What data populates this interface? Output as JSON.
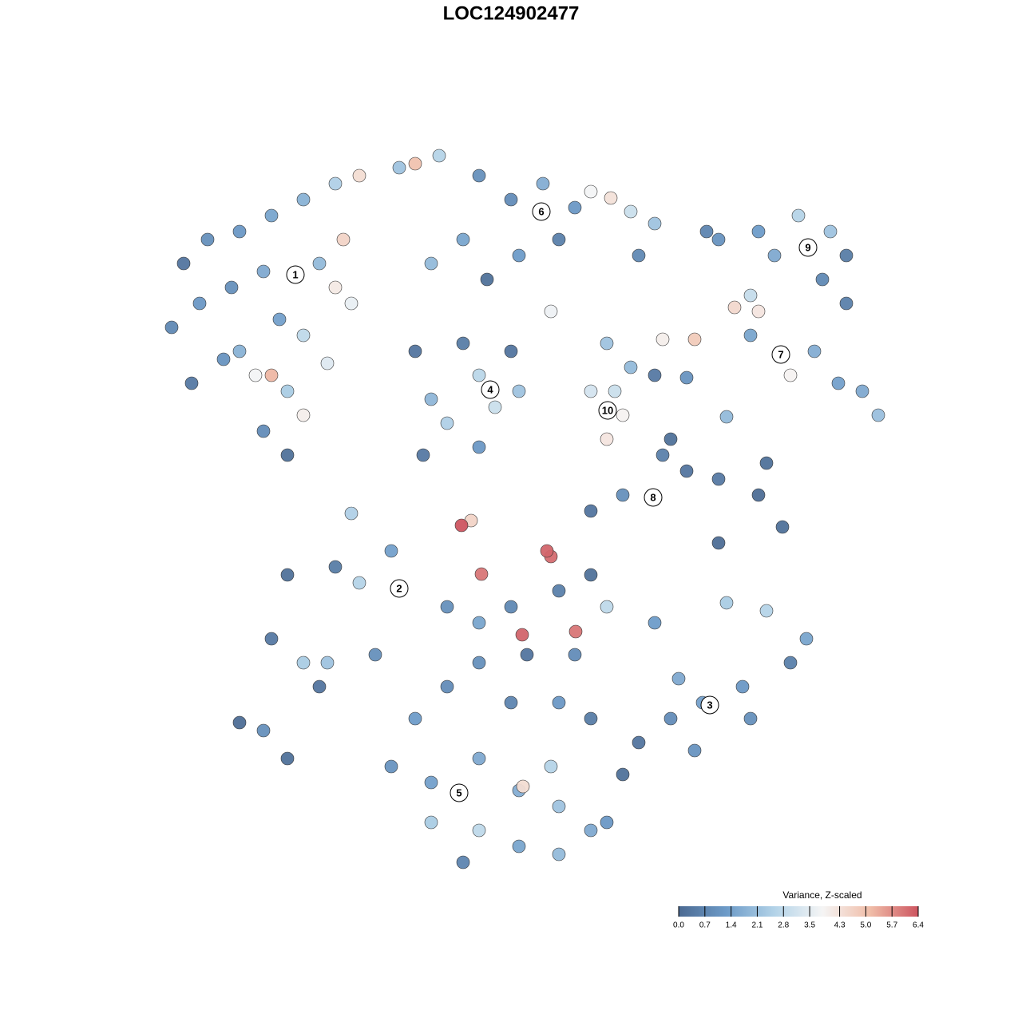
{
  "chart_data": {
    "type": "scatter",
    "title": "LOC124902477",
    "x": [
      30,
      60,
      100,
      140,
      180,
      220,
      250,
      300,
      320,
      350,
      15,
      50,
      90,
      130,
      200,
      230,
      220,
      240,
      180,
      150,
      100,
      120,
      140,
      160,
      180,
      130,
      160,
      40,
      80,
      210,
      400,
      440,
      480,
      520,
      540,
      565,
      590,
      620,
      500,
      450,
      380,
      340,
      410,
      490,
      600,
      700,
      750,
      800,
      840,
      860,
      830,
      770,
      740,
      685,
      860,
      630,
      670,
      720,
      750,
      790,
      820,
      850,
      900,
      880,
      740,
      660,
      710,
      620,
      320,
      340,
      360,
      400,
      420,
      450,
      380,
      440,
      400,
      330,
      560,
      590,
      540,
      580,
      560,
      570,
      640,
      660,
      700,
      750,
      780,
      700,
      580,
      540,
      630,
      760,
      378,
      390,
      485,
      490,
      403,
      454,
      521,
      240,
      160,
      220,
      250,
      290,
      140,
      180,
      210,
      200,
      100,
      160,
      130,
      270,
      620,
      710,
      760,
      810,
      790,
      730,
      680,
      640,
      600,
      580,
      740,
      650,
      670,
      360,
      400,
      440,
      500,
      540,
      560,
      460,
      400,
      360,
      320,
      440,
      500,
      540,
      290,
      340,
      400,
      450,
      455,
      500,
      340,
      400,
      450,
      500,
      540,
      380,
      490,
      520,
      560
    ],
    "y": [
      760,
      790,
      800,
      820,
      840,
      860,
      870,
      880,
      885,
      895,
      680,
      710,
      730,
      750,
      760,
      790,
      730,
      710,
      670,
      690,
      650,
      620,
      620,
      600,
      570,
      550,
      520,
      610,
      640,
      635,
      870,
      840,
      860,
      830,
      850,
      842,
      825,
      810,
      790,
      770,
      790,
      760,
      740,
      700,
      770,
      790,
      800,
      820,
      800,
      770,
      740,
      770,
      720,
      800,
      710,
      665,
      665,
      705,
      700,
      620,
      650,
      610,
      570,
      600,
      670,
      617,
      568,
      620,
      650,
      590,
      560,
      620,
      580,
      600,
      660,
      650,
      530,
      520,
      660,
      630,
      600,
      570,
      540,
      600,
      540,
      500,
      490,
      470,
      430,
      410,
      470,
      450,
      520,
      510,
      432,
      438,
      400,
      393,
      371,
      295,
      299,
      447,
      370,
      380,
      360,
      400,
      290,
      260,
      260,
      230,
      185,
      140,
      175,
      270,
      310,
      335,
      325,
      290,
      260,
      230,
      210,
      190,
      160,
      120,
      190,
      240,
      150,
      330,
      310,
      330,
      350,
      370,
      330,
      270,
      260,
      230,
      190,
      210,
      210,
      190,
      130,
      110,
      140,
      100,
      105,
      80,
      60,
      50,
      30,
      20,
      50,
      10,
      130,
      270,
      60
    ],
    "values": [
      0.3,
      1.0,
      1.2,
      1.5,
      1.8,
      2.5,
      4.4,
      2.2,
      5.0,
      2.6,
      0.8,
      1.2,
      1.0,
      1.6,
      2.0,
      4.6,
      4.1,
      3.6,
      2.8,
      1.4,
      1.8,
      3.8,
      5.2,
      2.4,
      4.0,
      0.9,
      0.2,
      0.4,
      1.1,
      3.4,
      1.0,
      0.9,
      1.7,
      1.2,
      3.8,
      4.3,
      3.0,
      2.2,
      0.6,
      1.3,
      1.5,
      2.0,
      0.2,
      3.7,
      0.8,
      1.1,
      1.3,
      2.6,
      2.2,
      0.5,
      0.8,
      1.6,
      2.9,
      0.7,
      0.6,
      4.0,
      4.8,
      4.5,
      4.2,
      3.9,
      1.7,
      1.4,
      2.1,
      1.6,
      1.5,
      1.1,
      2.0,
      0.4,
      0.3,
      1.9,
      2.5,
      2.7,
      3.0,
      2.2,
      0.5,
      0.3,
      1.2,
      0.4,
      2.2,
      2.0,
      3.2,
      3.9,
      4.2,
      3.0,
      0.2,
      0.3,
      0.4,
      0.1,
      0.2,
      0.1,
      1.0,
      0.3,
      0.6,
      0.2,
      6.4,
      4.6,
      6.2,
      6.1,
      6.0,
      6.2,
      6.0,
      2.5,
      0.2,
      0.5,
      2.6,
      1.4,
      0.4,
      2.4,
      2.2,
      0.3,
      0.1,
      0.2,
      1.0,
      1.0,
      1.3,
      2.4,
      2.6,
      1.5,
      0.6,
      1.2,
      1.4,
      0.9,
      0.3,
      0.2,
      1.0,
      1.6,
      1.1,
      1.0,
      1.5,
      0.8,
      0.6,
      0.2,
      2.8,
      0.3,
      1.0,
      0.9,
      1.3,
      0.7,
      1.2,
      0.5,
      1.1,
      1.4,
      1.6,
      1.7,
      4.4,
      2.2,
      2.4,
      2.8,
      1.5,
      2.0,
      1.6,
      0.7,
      2.6,
      0.9,
      1.2
    ],
    "xlim": [
      0,
      930
    ],
    "ylim": [
      0,
      905
    ],
    "cluster_labels": {
      "labels": [
        "1",
        "6",
        "9",
        "7",
        "4",
        "10",
        "8",
        "2",
        "3",
        "5"
      ],
      "x": [
        170,
        478,
        812,
        778,
        414,
        561,
        618,
        300,
        689,
        375
      ],
      "y": [
        746,
        825,
        780,
        646,
        602,
        576,
        467,
        353,
        207,
        97
      ]
    },
    "colorbar": {
      "title": "Variance, Z-scaled",
      "clim": [
        0,
        6.4
      ],
      "colors": [
        "#4b6a92",
        "#6d9bc8",
        "#b3d3e8",
        "#f5f5f5",
        "#f0bda8",
        "#cd5560"
      ],
      "ticks": [
        {
          "value": 0,
          "label": "0.0"
        },
        0.7,
        1.4,
        2.1,
        2.8,
        3.5,
        4.3,
        {
          "value": 5,
          "label": "5.0"
        },
        5.7,
        6.4
      ]
    }
  }
}
